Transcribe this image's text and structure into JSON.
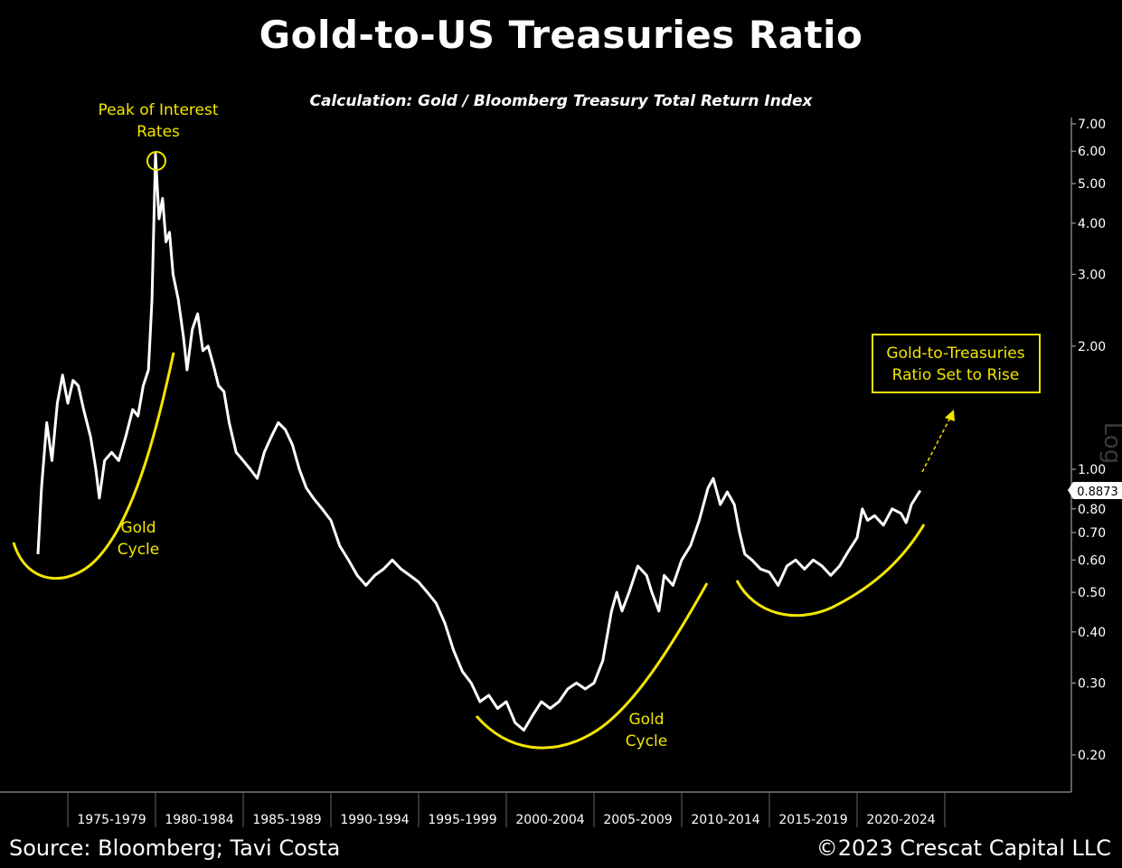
{
  "header": {
    "title": "Gold-to-US Treasuries Ratio",
    "subtitle": "Calculation: Gold / Bloomberg Treasury Total Return Index"
  },
  "footer": {
    "source": "Source: Bloomberg; Tavi Costa",
    "copyright": "©2023 Crescat Capital LLC"
  },
  "chart_data": {
    "type": "line",
    "title": "Gold-to-US Treasuries Ratio",
    "subtitle": "Calculation: Gold / Bloomberg Treasury Total Return Index",
    "y_scale": "log",
    "y_scale_label": "Log",
    "y_ticks": [
      "7.00",
      "6.00",
      "5.00",
      "4.00",
      "3.00",
      "2.00",
      "1.00",
      "0.80",
      "0.70",
      "0.60",
      "0.50",
      "0.40",
      "0.30",
      "0.20"
    ],
    "x_categories": [
      "1975-1979",
      "1980-1984",
      "1985-1989",
      "1990-1994",
      "1995-1999",
      "2000-2004",
      "2005-2009",
      "2010-2014",
      "2015-2019",
      "2020-2024"
    ],
    "last_value_label": "0.8873",
    "grid": true,
    "line_color": "#ffffff",
    "annotation_color": "#f3e600",
    "series": [
      {
        "values": [
          [
            1973.3,
            0.62
          ],
          [
            1973.5,
            0.9
          ],
          [
            1973.8,
            1.3
          ],
          [
            1974.1,
            1.05
          ],
          [
            1974.4,
            1.45
          ],
          [
            1974.7,
            1.7
          ],
          [
            1975.0,
            1.45
          ],
          [
            1975.3,
            1.65
          ],
          [
            1975.6,
            1.6
          ],
          [
            1975.9,
            1.4
          ],
          [
            1976.3,
            1.2
          ],
          [
            1976.6,
            1.0
          ],
          [
            1976.8,
            0.85
          ],
          [
            1977.1,
            1.05
          ],
          [
            1977.5,
            1.1
          ],
          [
            1977.9,
            1.05
          ],
          [
            1978.3,
            1.2
          ],
          [
            1978.7,
            1.4
          ],
          [
            1979.0,
            1.35
          ],
          [
            1979.3,
            1.6
          ],
          [
            1979.6,
            1.75
          ],
          [
            1979.8,
            2.6
          ],
          [
            1980.0,
            5.9
          ],
          [
            1980.2,
            4.1
          ],
          [
            1980.4,
            4.6
          ],
          [
            1980.6,
            3.6
          ],
          [
            1980.8,
            3.8
          ],
          [
            1981.0,
            3.0
          ],
          [
            1981.3,
            2.6
          ],
          [
            1981.6,
            2.1
          ],
          [
            1981.8,
            1.75
          ],
          [
            1982.1,
            2.2
          ],
          [
            1982.4,
            2.4
          ],
          [
            1982.7,
            1.95
          ],
          [
            1983.0,
            2.0
          ],
          [
            1983.3,
            1.8
          ],
          [
            1983.6,
            1.6
          ],
          [
            1983.9,
            1.55
          ],
          [
            1984.2,
            1.3
          ],
          [
            1984.6,
            1.1
          ],
          [
            1985.0,
            1.05
          ],
          [
            1985.4,
            1.0
          ],
          [
            1985.8,
            0.95
          ],
          [
            1986.2,
            1.1
          ],
          [
            1986.6,
            1.2
          ],
          [
            1987.0,
            1.3
          ],
          [
            1987.4,
            1.25
          ],
          [
            1987.8,
            1.15
          ],
          [
            1988.2,
            1.0
          ],
          [
            1988.6,
            0.9
          ],
          [
            1989.0,
            0.85
          ],
          [
            1989.5,
            0.8
          ],
          [
            1990.0,
            0.75
          ],
          [
            1990.5,
            0.65
          ],
          [
            1991.0,
            0.6
          ],
          [
            1991.5,
            0.55
          ],
          [
            1992.0,
            0.52
          ],
          [
            1992.5,
            0.55
          ],
          [
            1993.0,
            0.57
          ],
          [
            1993.5,
            0.6
          ],
          [
            1994.0,
            0.57
          ],
          [
            1994.5,
            0.55
          ],
          [
            1995.0,
            0.53
          ],
          [
            1995.5,
            0.5
          ],
          [
            1996.0,
            0.47
          ],
          [
            1996.5,
            0.42
          ],
          [
            1997.0,
            0.36
          ],
          [
            1997.5,
            0.32
          ],
          [
            1998.0,
            0.3
          ],
          [
            1998.5,
            0.27
          ],
          [
            1999.0,
            0.28
          ],
          [
            1999.5,
            0.26
          ],
          [
            2000.0,
            0.27
          ],
          [
            2000.5,
            0.24
          ],
          [
            2001.0,
            0.23
          ],
          [
            2001.5,
            0.25
          ],
          [
            2002.0,
            0.27
          ],
          [
            2002.5,
            0.26
          ],
          [
            2003.0,
            0.27
          ],
          [
            2003.5,
            0.29
          ],
          [
            2004.0,
            0.3
          ],
          [
            2004.5,
            0.29
          ],
          [
            2005.0,
            0.3
          ],
          [
            2005.5,
            0.34
          ],
          [
            2006.0,
            0.45
          ],
          [
            2006.3,
            0.5
          ],
          [
            2006.6,
            0.45
          ],
          [
            2007.0,
            0.5
          ],
          [
            2007.5,
            0.58
          ],
          [
            2008.0,
            0.55
          ],
          [
            2008.3,
            0.5
          ],
          [
            2008.7,
            0.45
          ],
          [
            2009.0,
            0.55
          ],
          [
            2009.5,
            0.52
          ],
          [
            2010.0,
            0.6
          ],
          [
            2010.5,
            0.65
          ],
          [
            2011.0,
            0.75
          ],
          [
            2011.5,
            0.9
          ],
          [
            2011.8,
            0.95
          ],
          [
            2012.2,
            0.82
          ],
          [
            2012.6,
            0.88
          ],
          [
            2013.0,
            0.82
          ],
          [
            2013.3,
            0.7
          ],
          [
            2013.6,
            0.62
          ],
          [
            2014.0,
            0.6
          ],
          [
            2014.5,
            0.57
          ],
          [
            2015.0,
            0.56
          ],
          [
            2015.5,
            0.52
          ],
          [
            2016.0,
            0.58
          ],
          [
            2016.5,
            0.6
          ],
          [
            2017.0,
            0.57
          ],
          [
            2017.5,
            0.6
          ],
          [
            2018.0,
            0.58
          ],
          [
            2018.5,
            0.55
          ],
          [
            2019.0,
            0.58
          ],
          [
            2019.5,
            0.63
          ],
          [
            2020.0,
            0.68
          ],
          [
            2020.3,
            0.8
          ],
          [
            2020.6,
            0.75
          ],
          [
            2021.0,
            0.77
          ],
          [
            2021.5,
            0.73
          ],
          [
            2022.0,
            0.8
          ],
          [
            2022.5,
            0.78
          ],
          [
            2022.8,
            0.74
          ],
          [
            2023.1,
            0.82
          ],
          [
            2023.4,
            0.86
          ],
          [
            2023.6,
            0.8873
          ]
        ]
      }
    ],
    "annotations": [
      {
        "text": [
          "Peak of Interest",
          "Rates"
        ]
      },
      {
        "text": [
          "Gold",
          "Cycle"
        ]
      },
      {
        "text": [
          "Gold",
          "Cycle"
        ]
      },
      {
        "text": [
          "Gold-to-Treasuries",
          "Ratio Set to Rise"
        ]
      }
    ]
  }
}
